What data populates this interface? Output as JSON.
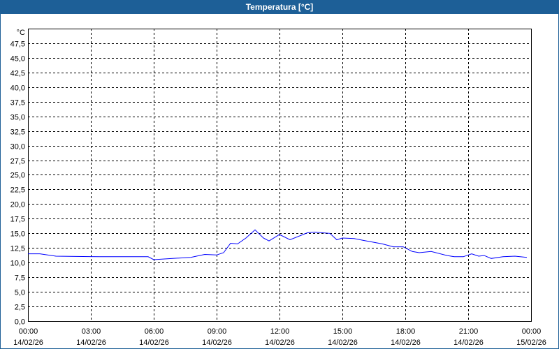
{
  "chart_data": {
    "type": "line",
    "title": "Temperatura [°C]",
    "ylabel": "°C",
    "xlabel": "",
    "ylim": [
      0,
      50
    ],
    "yticks": [
      "0,0",
      "2,5",
      "5,0",
      "7,5",
      "10,0",
      "12,5",
      "15,0",
      "17,5",
      "20,0",
      "22,5",
      "25,0",
      "27,5",
      "30,0",
      "32,5",
      "35,0",
      "37,5",
      "40,0",
      "42,5",
      "45,0",
      "47,5"
    ],
    "xticks": [
      {
        "time": "00:00",
        "date": "14/02/26"
      },
      {
        "time": "03:00",
        "date": "14/02/26"
      },
      {
        "time": "06:00",
        "date": "14/02/26"
      },
      {
        "time": "09:00",
        "date": "14/02/26"
      },
      {
        "time": "12:00",
        "date": "14/02/26"
      },
      {
        "time": "15:00",
        "date": "14/02/26"
      },
      {
        "time": "18:00",
        "date": "14/02/26"
      },
      {
        "time": "21:00",
        "date": "14/02/26"
      },
      {
        "time": "00:00",
        "date": "15/02/26"
      }
    ],
    "grid": true,
    "line_color": "#0000ff",
    "series": [
      {
        "x": [
          "00:00",
          "00:34",
          "01:20",
          "03:26",
          "05:44",
          "06:00",
          "06:54",
          "07:46",
          "08:26",
          "09:00",
          "09:20",
          "09:40",
          "10:00",
          "10:24",
          "10:50",
          "11:14",
          "11:30",
          "12:00",
          "12:30",
          "13:20",
          "13:40",
          "14:24",
          "14:44",
          "15:00",
          "15:34",
          "16:00",
          "16:54",
          "17:26",
          "17:54",
          "18:20",
          "18:40",
          "19:14",
          "20:00",
          "20:20",
          "20:46",
          "21:10",
          "21:30",
          "21:46",
          "22:06",
          "22:40",
          "23:14",
          "23:48"
        ],
        "y": [
          11.5,
          11.5,
          11.1,
          11.0,
          11.0,
          10.5,
          10.7,
          10.9,
          11.4,
          11.3,
          11.7,
          13.3,
          13.2,
          14.2,
          15.6,
          14.2,
          13.7,
          14.8,
          13.9,
          15.1,
          15.2,
          15.0,
          13.9,
          14.2,
          14.1,
          13.8,
          13.2,
          12.7,
          12.7,
          11.9,
          11.7,
          11.9,
          11.2,
          11.0,
          11.0,
          11.5,
          11.1,
          11.2,
          10.7,
          11.0,
          11.1,
          10.9
        ]
      }
    ]
  }
}
